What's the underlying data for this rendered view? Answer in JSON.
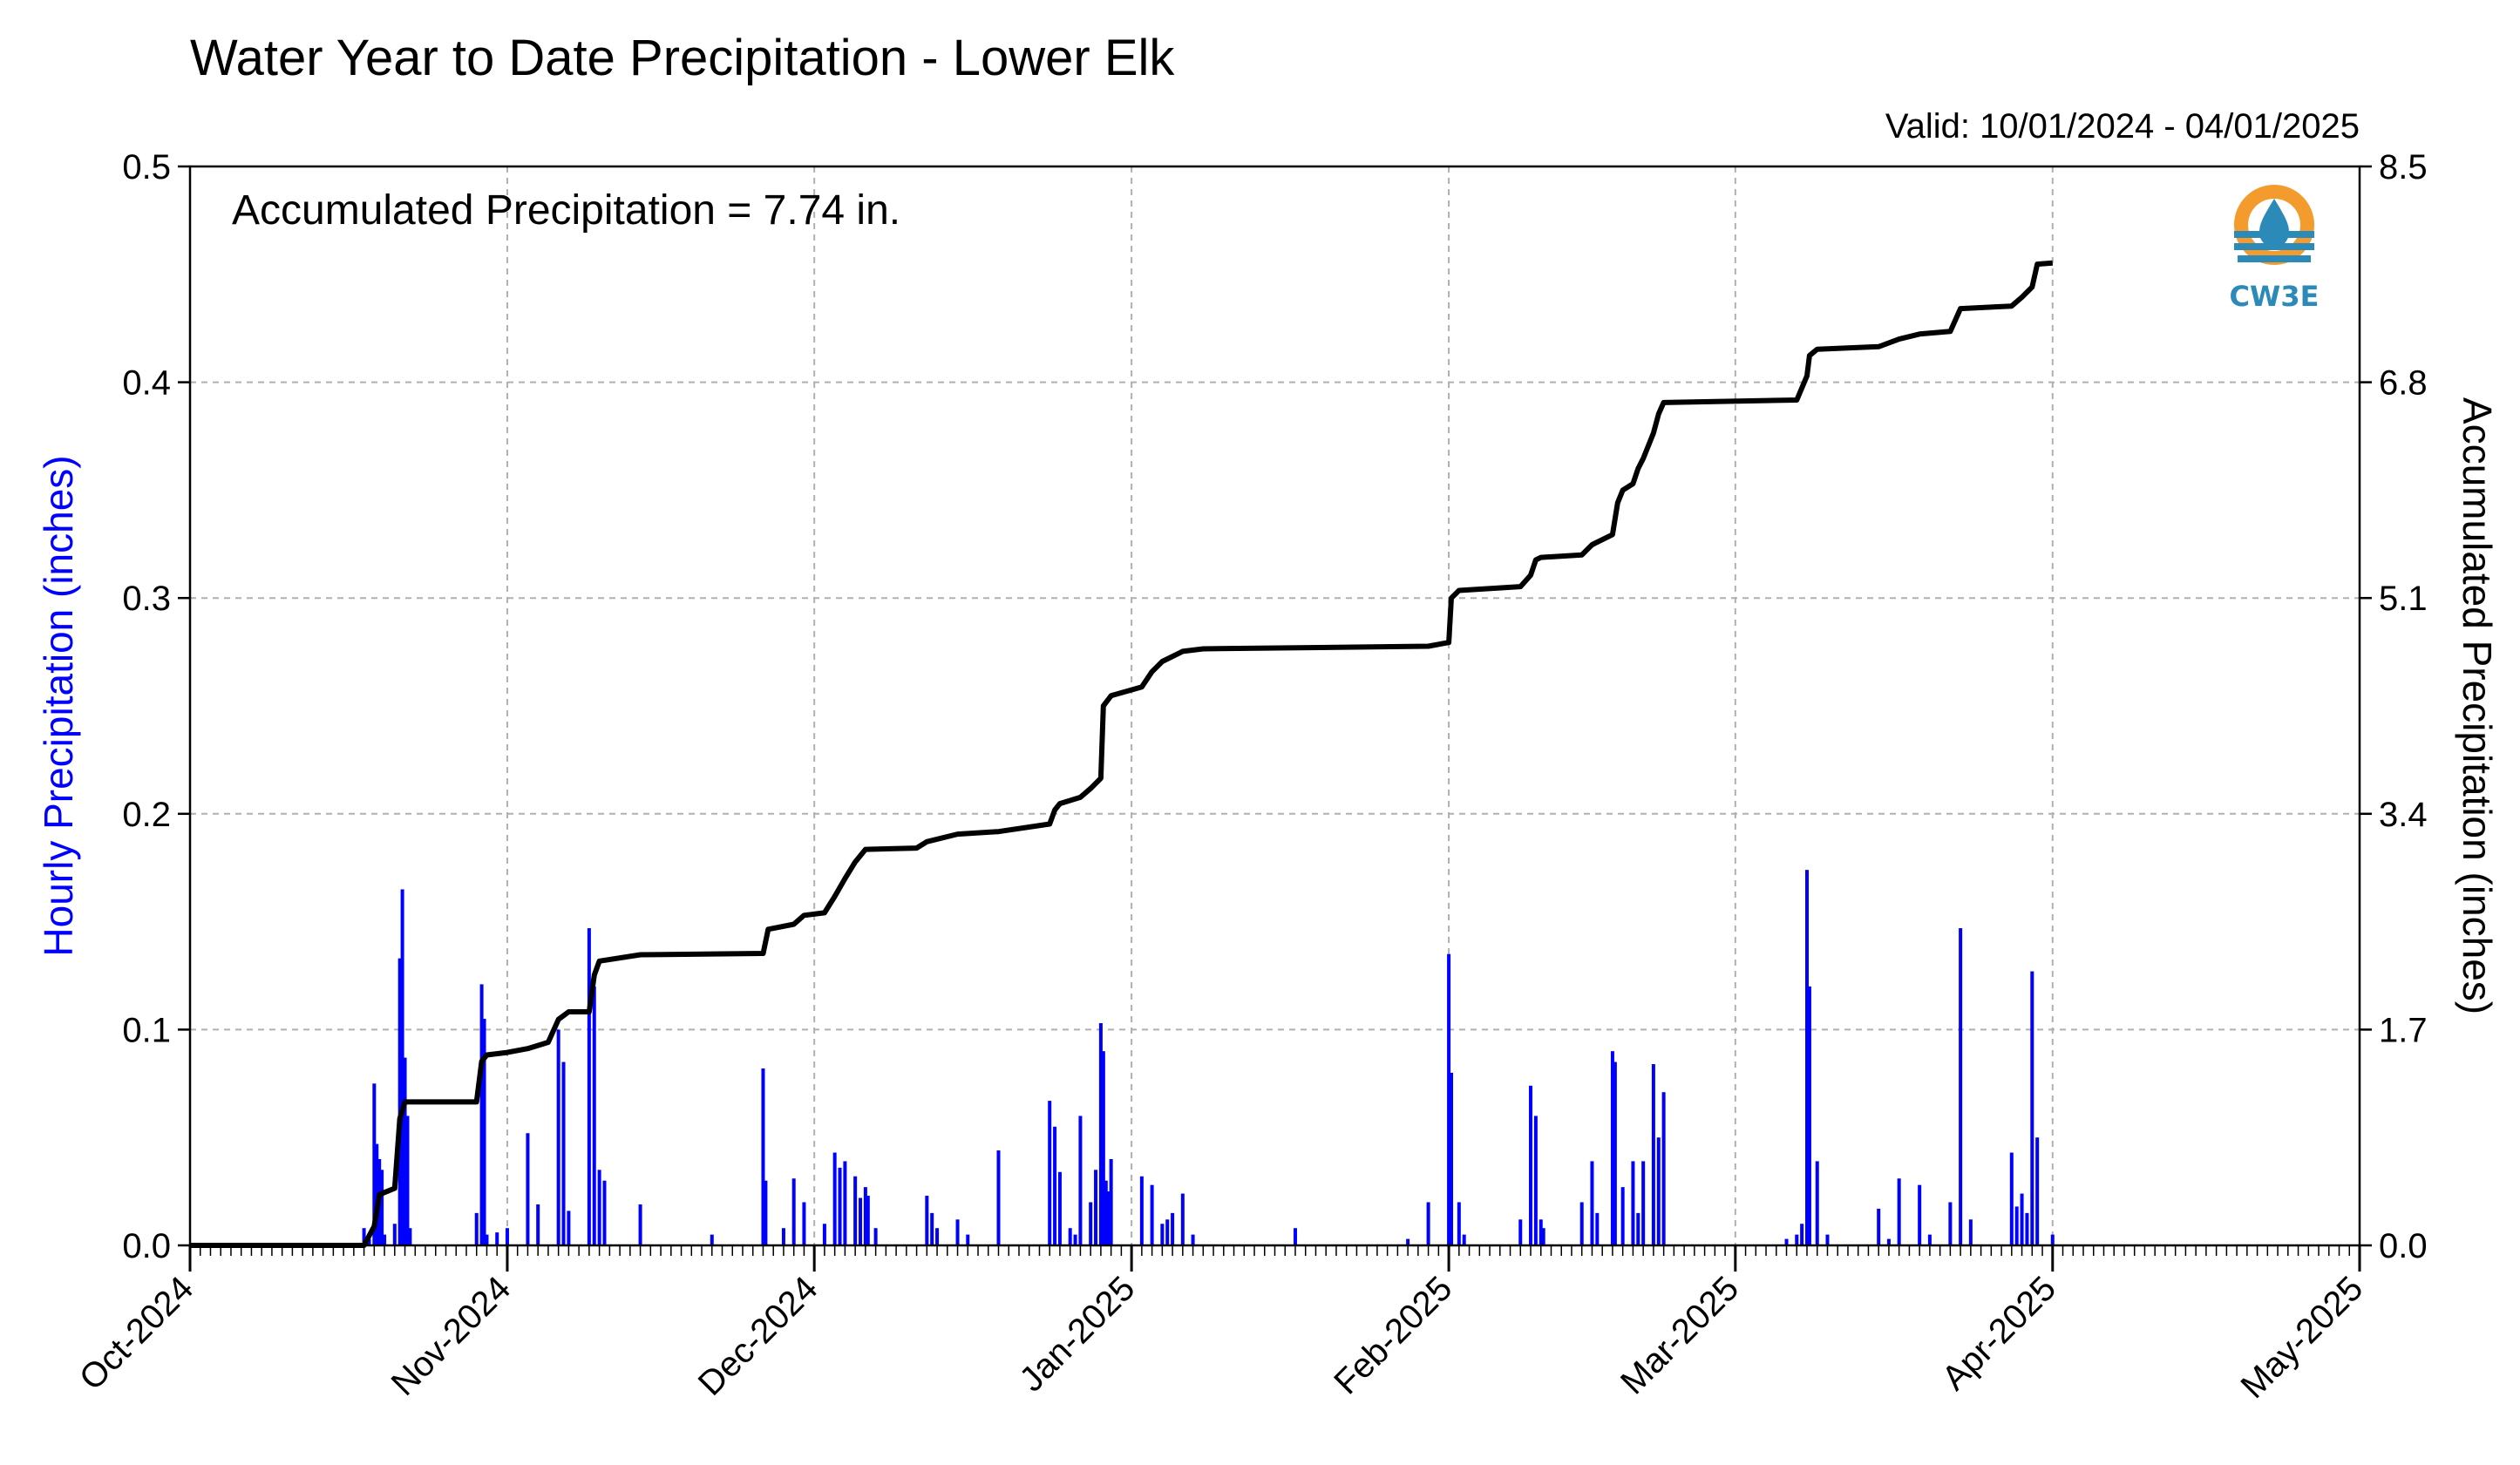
{
  "chart_data": {
    "type": "bar",
    "title": "Water Year to Date Precipitation - Lower Elk",
    "valid_label": "Valid: 10/01/2024 - 04/01/2025",
    "annotation": "Accumulated Precipitation = 7.74 in.",
    "logo_text": "CW3E",
    "ylabel_left": "Hourly Precipitation (inches)",
    "ylabel_right": "Accumulated Precipitation (inches)",
    "x_range": [
      "2024-10-01",
      "2025-05-01"
    ],
    "x_ticks": [
      {
        "date": "2024-10-01",
        "label": "Oct-2024"
      },
      {
        "date": "2024-11-01",
        "label": "Nov-2024"
      },
      {
        "date": "2024-12-01",
        "label": "Dec-2024"
      },
      {
        "date": "2025-01-01",
        "label": "Jan-2025"
      },
      {
        "date": "2025-02-01",
        "label": "Feb-2025"
      },
      {
        "date": "2025-03-01",
        "label": "Mar-2025"
      },
      {
        "date": "2025-04-01",
        "label": "Apr-2025"
      },
      {
        "date": "2025-05-01",
        "label": "May-2025"
      }
    ],
    "y_left": {
      "range": [
        0,
        0.5
      ],
      "ticks": [
        "0.0",
        "0.1",
        "0.2",
        "0.3",
        "0.4",
        "0.5"
      ]
    },
    "y_right": {
      "range": [
        0,
        8.5
      ],
      "ticks": [
        "0.0",
        "1.7",
        "3.4",
        "5.1",
        "6.8",
        "8.5"
      ]
    },
    "grid": true,
    "colors": {
      "hourly": "#0000ff",
      "accumulated": "#000000",
      "grid": "#b0b0b0",
      "logo_orange": "#f39c2d",
      "logo_blue": "#2b8ab8"
    },
    "series": [
      {
        "name": "Hourly Precipitation (inches)",
        "type": "bar",
        "points": [
          [
            "2024-10-18",
            0.008
          ],
          [
            "2024-10-18T12",
            0.003
          ],
          [
            "2024-10-19",
            0.075
          ],
          [
            "2024-10-19T06",
            0.047
          ],
          [
            "2024-10-19T12",
            0.04
          ],
          [
            "2024-10-19T18",
            0.035
          ],
          [
            "2024-10-20",
            0.005
          ],
          [
            "2024-10-21",
            0.01
          ],
          [
            "2024-10-21T12",
            0.133
          ],
          [
            "2024-10-21T18",
            0.165
          ],
          [
            "2024-10-22",
            0.087
          ],
          [
            "2024-10-22T06",
            0.06
          ],
          [
            "2024-10-22T12",
            0.008
          ],
          [
            "2024-10-29",
            0.015
          ],
          [
            "2024-10-29T12",
            0.121
          ],
          [
            "2024-10-29T18",
            0.105
          ],
          [
            "2024-10-30",
            0.005
          ],
          [
            "2024-10-31",
            0.006
          ],
          [
            "2024-11-01",
            0.008
          ],
          [
            "2024-11-03",
            0.052
          ],
          [
            "2024-11-04",
            0.019
          ],
          [
            "2024-11-06",
            0.1
          ],
          [
            "2024-11-06T12",
            0.085
          ],
          [
            "2024-11-07",
            0.016
          ],
          [
            "2024-11-09",
            0.147
          ],
          [
            "2024-11-09T12",
            0.12
          ],
          [
            "2024-11-10",
            0.035
          ],
          [
            "2024-11-10T12",
            0.03
          ],
          [
            "2024-11-14",
            0.019
          ],
          [
            "2024-11-21",
            0.005
          ],
          [
            "2024-11-26",
            0.082
          ],
          [
            "2024-11-26T06",
            0.03
          ],
          [
            "2024-11-28",
            0.008
          ],
          [
            "2024-11-29",
            0.031
          ],
          [
            "2024-11-30",
            0.02
          ],
          [
            "2024-12-02",
            0.01
          ],
          [
            "2024-12-03",
            0.043
          ],
          [
            "2024-12-03T12",
            0.036
          ],
          [
            "2024-12-04",
            0.039
          ],
          [
            "2024-12-05",
            0.032
          ],
          [
            "2024-12-05T12",
            0.022
          ],
          [
            "2024-12-06",
            0.027
          ],
          [
            "2024-12-06T06",
            0.023
          ],
          [
            "2024-12-07",
            0.008
          ],
          [
            "2024-12-12",
            0.023
          ],
          [
            "2024-12-12T12",
            0.015
          ],
          [
            "2024-12-13",
            0.008
          ],
          [
            "2024-12-15",
            0.012
          ],
          [
            "2024-12-16",
            0.005
          ],
          [
            "2024-12-19",
            0.044
          ],
          [
            "2024-12-24",
            0.067
          ],
          [
            "2024-12-24T12",
            0.055
          ],
          [
            "2024-12-25",
            0.034
          ],
          [
            "2024-12-26",
            0.008
          ],
          [
            "2024-12-26T12",
            0.005
          ],
          [
            "2024-12-27",
            0.06
          ],
          [
            "2024-12-28",
            0.02
          ],
          [
            "2024-12-28T12",
            0.035
          ],
          [
            "2024-12-29",
            0.103
          ],
          [
            "2024-12-29T06",
            0.09
          ],
          [
            "2024-12-29T12",
            0.03
          ],
          [
            "2024-12-29T18",
            0.025
          ],
          [
            "2024-12-30",
            0.04
          ],
          [
            "2025-01-02",
            0.032
          ],
          [
            "2025-01-03",
            0.028
          ],
          [
            "2025-01-04",
            0.01
          ],
          [
            "2025-01-04T12",
            0.012
          ],
          [
            "2025-01-05",
            0.015
          ],
          [
            "2025-01-06",
            0.024
          ],
          [
            "2025-01-07",
            0.005
          ],
          [
            "2025-01-17",
            0.008
          ],
          [
            "2025-01-28",
            0.003
          ],
          [
            "2025-01-30",
            0.02
          ],
          [
            "2025-02-01",
            0.135
          ],
          [
            "2025-02-01T06",
            0.08
          ],
          [
            "2025-02-02",
            0.02
          ],
          [
            "2025-02-02T12",
            0.005
          ],
          [
            "2025-02-08",
            0.012
          ],
          [
            "2025-02-09",
            0.074
          ],
          [
            "2025-02-09T12",
            0.06
          ],
          [
            "2025-02-10",
            0.012
          ],
          [
            "2025-02-10T06",
            0.008
          ],
          [
            "2025-02-14",
            0.02
          ],
          [
            "2025-02-15",
            0.039
          ],
          [
            "2025-02-15T12",
            0.015
          ],
          [
            "2025-02-17",
            0.09
          ],
          [
            "2025-02-17T06",
            0.085
          ],
          [
            "2025-02-18",
            0.027
          ],
          [
            "2025-02-19",
            0.039
          ],
          [
            "2025-02-19T12",
            0.015
          ],
          [
            "2025-02-20",
            0.039
          ],
          [
            "2025-02-21",
            0.084
          ],
          [
            "2025-02-21T12",
            0.05
          ],
          [
            "2025-02-22",
            0.071
          ],
          [
            "2025-03-06",
            0.003
          ],
          [
            "2025-03-07",
            0.005
          ],
          [
            "2025-03-07T12",
            0.01
          ],
          [
            "2025-03-08",
            0.174
          ],
          [
            "2025-03-08T06",
            0.12
          ],
          [
            "2025-03-09",
            0.039
          ],
          [
            "2025-03-10",
            0.005
          ],
          [
            "2025-03-15",
            0.017
          ],
          [
            "2025-03-16",
            0.003
          ],
          [
            "2025-03-17",
            0.031
          ],
          [
            "2025-03-19",
            0.028
          ],
          [
            "2025-03-20",
            0.005
          ],
          [
            "2025-03-22",
            0.02
          ],
          [
            "2025-03-23",
            0.147
          ],
          [
            "2025-03-24",
            0.012
          ],
          [
            "2025-03-28",
            0.043
          ],
          [
            "2025-03-28T12",
            0.018
          ],
          [
            "2025-03-29",
            0.024
          ],
          [
            "2025-03-29T12",
            0.015
          ],
          [
            "2025-03-30",
            0.127
          ],
          [
            "2025-03-30T12",
            0.05
          ],
          [
            "2025-04-01",
            0.005
          ]
        ]
      },
      {
        "name": "Accumulated Precipitation (inches)",
        "type": "line",
        "points": [
          [
            "2024-10-01",
            0.0
          ],
          [
            "2024-10-18",
            0.0
          ],
          [
            "2024-10-19",
            0.15
          ],
          [
            "2024-10-19T12",
            0.4
          ],
          [
            "2024-10-21",
            0.45
          ],
          [
            "2024-10-21T12",
            1.0
          ],
          [
            "2024-10-22",
            1.13
          ],
          [
            "2024-10-29",
            1.13
          ],
          [
            "2024-10-29T12",
            1.45
          ],
          [
            "2024-10-30",
            1.5
          ],
          [
            "2024-11-01",
            1.52
          ],
          [
            "2024-11-03",
            1.55
          ],
          [
            "2024-11-05",
            1.6
          ],
          [
            "2024-11-06",
            1.78
          ],
          [
            "2024-11-07",
            1.84
          ],
          [
            "2024-11-09",
            1.84
          ],
          [
            "2024-11-09T12",
            2.13
          ],
          [
            "2024-11-10",
            2.24
          ],
          [
            "2024-11-14",
            2.29
          ],
          [
            "2024-11-26",
            2.3
          ],
          [
            "2024-11-26T12",
            2.49
          ],
          [
            "2024-11-29",
            2.53
          ],
          [
            "2024-11-30",
            2.6
          ],
          [
            "2024-12-02",
            2.62
          ],
          [
            "2024-12-03",
            2.75
          ],
          [
            "2024-12-04",
            2.89
          ],
          [
            "2024-12-05",
            3.02
          ],
          [
            "2024-12-06",
            3.12
          ],
          [
            "2024-12-11",
            3.13
          ],
          [
            "2024-12-12",
            3.18
          ],
          [
            "2024-12-15",
            3.24
          ],
          [
            "2024-12-19",
            3.26
          ],
          [
            "2024-12-24",
            3.32
          ],
          [
            "2024-12-24T12",
            3.43
          ],
          [
            "2024-12-25",
            3.48
          ],
          [
            "2024-12-27",
            3.53
          ],
          [
            "2024-12-28",
            3.6
          ],
          [
            "2024-12-29",
            3.68
          ],
          [
            "2024-12-29T06",
            4.25
          ],
          [
            "2024-12-30",
            4.33
          ],
          [
            "2025-01-02",
            4.4
          ],
          [
            "2025-01-03",
            4.52
          ],
          [
            "2025-01-04",
            4.6
          ],
          [
            "2025-01-06",
            4.68
          ],
          [
            "2025-01-08",
            4.7
          ],
          [
            "2025-01-30",
            4.72
          ],
          [
            "2025-02-01",
            4.75
          ],
          [
            "2025-02-01T06",
            5.1
          ],
          [
            "2025-02-02",
            5.16
          ],
          [
            "2025-02-08",
            5.19
          ],
          [
            "2025-02-09",
            5.28
          ],
          [
            "2025-02-09T12",
            5.4
          ],
          [
            "2025-02-10",
            5.42
          ],
          [
            "2025-02-14",
            5.44
          ],
          [
            "2025-02-15",
            5.52
          ],
          [
            "2025-02-16",
            5.56
          ],
          [
            "2025-02-17",
            5.6
          ],
          [
            "2025-02-17T12",
            5.85
          ],
          [
            "2025-02-18",
            5.95
          ],
          [
            "2025-02-19",
            6.0
          ],
          [
            "2025-02-19T12",
            6.12
          ],
          [
            "2025-02-20",
            6.2
          ],
          [
            "2025-02-21",
            6.4
          ],
          [
            "2025-02-21T12",
            6.55
          ],
          [
            "2025-02-22",
            6.64
          ],
          [
            "2025-03-07",
            6.66
          ],
          [
            "2025-03-08",
            6.85
          ],
          [
            "2025-03-08T06",
            7.01
          ],
          [
            "2025-03-09",
            7.06
          ],
          [
            "2025-03-15",
            7.08
          ],
          [
            "2025-03-17",
            7.14
          ],
          [
            "2025-03-19",
            7.18
          ],
          [
            "2025-03-22",
            7.2
          ],
          [
            "2025-03-23",
            7.38
          ],
          [
            "2025-03-28",
            7.4
          ],
          [
            "2025-03-29",
            7.47
          ],
          [
            "2025-03-30",
            7.55
          ],
          [
            "2025-03-30T12",
            7.73
          ],
          [
            "2025-04-01",
            7.74
          ]
        ]
      }
    ]
  }
}
